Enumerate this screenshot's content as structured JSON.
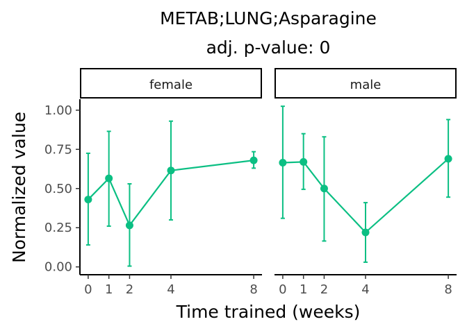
{
  "chart_data": {
    "type": "line",
    "title": "METAB;LUNG;Asparagine",
    "subtitle": "adj. p-value: 0",
    "xlabel": "Time trained (weeks)",
    "ylabel": "Normalized value",
    "ylim": [
      -0.05,
      1.07
    ],
    "xlim": [
      -0.4,
      8.4
    ],
    "y_ticks": [
      0.0,
      0.25,
      0.5,
      0.75,
      1.0
    ],
    "y_tick_labels": [
      "0.00",
      "0.25",
      "0.50",
      "0.75",
      "1.00"
    ],
    "x_ticks": [
      0,
      1,
      2,
      4,
      8
    ],
    "x_tick_labels": [
      "0",
      "1",
      "2",
      "4",
      "8"
    ],
    "grid": false,
    "color": "#0bbf83",
    "panels": [
      {
        "label": "female",
        "x": [
          0,
          1,
          2,
          4,
          8
        ],
        "y": [
          0.43,
          0.565,
          0.265,
          0.615,
          0.68
        ],
        "ymin": [
          0.14,
          0.26,
          0.005,
          0.3,
          0.63
        ],
        "ymax": [
          0.725,
          0.865,
          0.53,
          0.93,
          0.735
        ]
      },
      {
        "label": "male",
        "x": [
          0,
          1,
          2,
          4,
          8
        ],
        "y": [
          0.665,
          0.67,
          0.5,
          0.22,
          0.69
        ],
        "ymin": [
          0.31,
          0.495,
          0.165,
          0.03,
          0.445
        ],
        "ymax": [
          1.025,
          0.85,
          0.83,
          0.41,
          0.94
        ]
      }
    ]
  }
}
